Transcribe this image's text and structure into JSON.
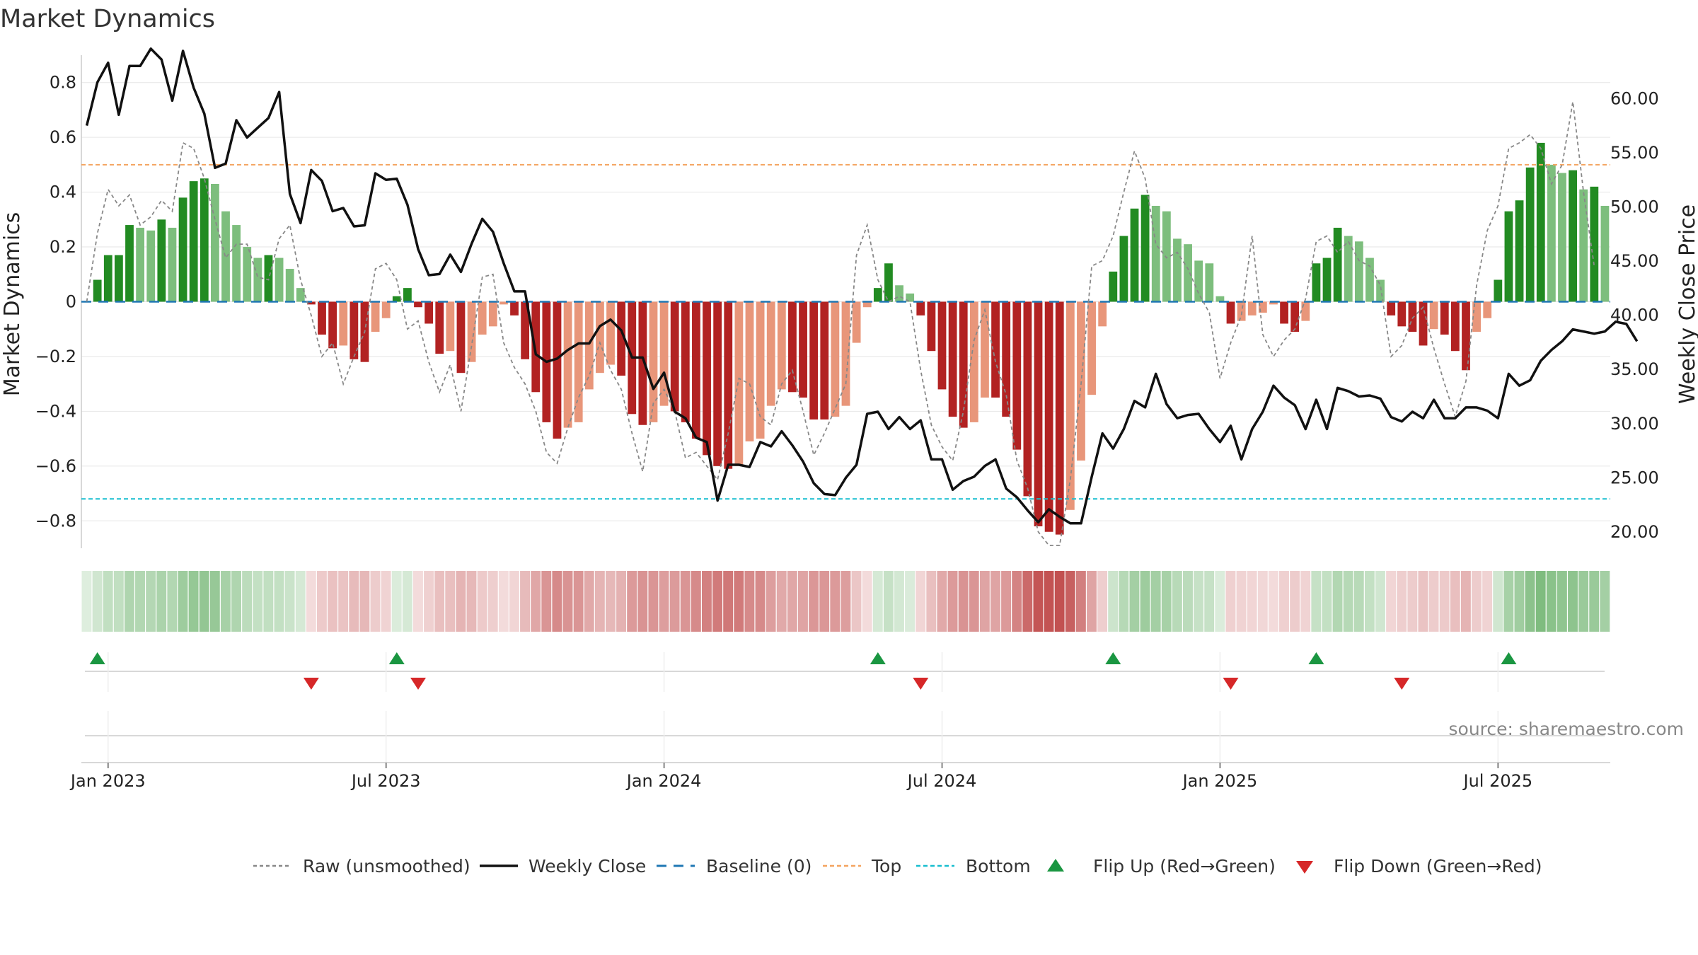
{
  "chart_data": {
    "type": "bar",
    "title": "Market Dynamics",
    "ylabel": "Market Dynamics",
    "y2label": "Weekly Close Price",
    "ylim": [
      -0.9,
      0.9
    ],
    "y2lim": [
      18.5,
      64.0
    ],
    "yticks": [
      "0.8",
      "0.6",
      "0.4",
      "0.2",
      "0",
      "−0.2",
      "−0.4",
      "−0.6",
      "−0.8"
    ],
    "yticks_values": [
      0.8,
      0.6,
      0.4,
      0.2,
      0,
      -0.2,
      -0.4,
      -0.6,
      -0.8
    ],
    "y2ticks": [
      "60.00",
      "55.00",
      "50.00",
      "45.00",
      "40.00",
      "35.00",
      "30.00",
      "25.00",
      "20.00"
    ],
    "y2ticks_values": [
      60,
      55,
      50,
      45,
      40,
      35,
      30,
      25,
      20
    ],
    "xticks": [
      "Jan 2023",
      "Jul 2023",
      "Jan 2024",
      "Jul 2024",
      "Jan 2025",
      "Jul 2025"
    ],
    "xticks_weeks": [
      2,
      28,
      54,
      80,
      106,
      132
    ],
    "top_level": 0.5,
    "bottom_level": -0.72,
    "baseline": 0,
    "grid": true,
    "legend_position": "bottom-center",
    "colors": {
      "green_dark": "#228b22",
      "green_light": "#7dbe7d",
      "red_dark": "#b22222",
      "red_light": "#e8967a",
      "close_line": "#111111",
      "raw_line": "#888888",
      "baseline": "#1f77b4",
      "top": "#f4a460",
      "bottom": "#17becf",
      "flip_up": "#1a9641",
      "flip_down": "#d62728"
    },
    "dynamics": [
      0.0,
      0.08,
      0.17,
      0.17,
      0.28,
      0.27,
      0.26,
      0.3,
      0.27,
      0.38,
      0.44,
      0.45,
      0.43,
      0.33,
      0.28,
      0.2,
      0.16,
      0.17,
      0.16,
      0.12,
      0.05,
      -0.01,
      -0.12,
      -0.17,
      -0.16,
      -0.21,
      -0.22,
      -0.11,
      -0.06,
      0.02,
      0.05,
      -0.02,
      -0.08,
      -0.19,
      -0.18,
      -0.26,
      -0.22,
      -0.12,
      -0.09,
      -0.01,
      -0.05,
      -0.21,
      -0.33,
      -0.44,
      -0.5,
      -0.46,
      -0.44,
      -0.32,
      -0.26,
      -0.23,
      -0.27,
      -0.41,
      -0.45,
      -0.44,
      -0.38,
      -0.4,
      -0.44,
      -0.5,
      -0.56,
      -0.6,
      -0.61,
      -0.6,
      -0.51,
      -0.5,
      -0.38,
      -0.32,
      -0.33,
      -0.35,
      -0.43,
      -0.43,
      -0.42,
      -0.38,
      -0.15,
      -0.02,
      0.05,
      0.14,
      0.06,
      0.03,
      -0.05,
      -0.18,
      -0.32,
      -0.42,
      -0.46,
      -0.44,
      -0.35,
      -0.35,
      -0.42,
      -0.54,
      -0.71,
      -0.82,
      -0.84,
      -0.85,
      -0.76,
      -0.58,
      -0.34,
      -0.09,
      0.11,
      0.24,
      0.34,
      0.39,
      0.35,
      0.33,
      0.23,
      0.21,
      0.15,
      0.14,
      0.02,
      -0.08,
      -0.07,
      -0.05,
      -0.04,
      -0.01,
      -0.08,
      -0.11,
      -0.07,
      0.14,
      0.16,
      0.27,
      0.24,
      0.22,
      0.16,
      0.08,
      -0.05,
      -0.09,
      -0.11,
      -0.16,
      -0.1,
      -0.12,
      -0.18,
      -0.25,
      -0.11,
      -0.06,
      0.08,
      0.33,
      0.37,
      0.49,
      0.58,
      0.5,
      0.47,
      0.48,
      0.41,
      0.42,
      0.35
    ],
    "raw": [
      0.0,
      0.25,
      0.41,
      0.35,
      0.39,
      0.28,
      0.31,
      0.37,
      0.33,
      0.58,
      0.56,
      0.45,
      0.3,
      0.16,
      0.21,
      0.21,
      0.09,
      0.08,
      0.23,
      0.28,
      0.08,
      -0.05,
      -0.2,
      -0.15,
      -0.3,
      -0.2,
      -0.11,
      0.12,
      0.14,
      0.08,
      -0.1,
      -0.07,
      -0.22,
      -0.33,
      -0.23,
      -0.4,
      -0.16,
      0.09,
      0.1,
      -0.15,
      -0.24,
      -0.3,
      -0.4,
      -0.55,
      -0.59,
      -0.46,
      -0.35,
      -0.27,
      -0.15,
      -0.25,
      -0.32,
      -0.48,
      -0.62,
      -0.37,
      -0.32,
      -0.4,
      -0.57,
      -0.55,
      -0.6,
      -0.65,
      -0.48,
      -0.28,
      -0.3,
      -0.42,
      -0.45,
      -0.3,
      -0.25,
      -0.4,
      -0.56,
      -0.48,
      -0.39,
      -0.3,
      0.17,
      0.28,
      0.08,
      0.0,
      0.02,
      0.0,
      -0.25,
      -0.45,
      -0.53,
      -0.58,
      -0.4,
      -0.14,
      -0.03,
      -0.22,
      -0.34,
      -0.58,
      -0.68,
      -0.84,
      -0.89,
      -0.89,
      -0.65,
      -0.3,
      0.13,
      0.15,
      0.24,
      0.4,
      0.55,
      0.45,
      0.21,
      0.16,
      0.18,
      0.12,
      0.03,
      -0.04,
      -0.28,
      -0.15,
      -0.05,
      0.24,
      -0.12,
      -0.2,
      -0.14,
      -0.1,
      0.01,
      0.22,
      0.24,
      0.18,
      0.22,
      0.15,
      0.13,
      0.06,
      -0.2,
      -0.16,
      -0.06,
      -0.02,
      -0.17,
      -0.3,
      -0.42,
      -0.29,
      0.06,
      0.26,
      0.35,
      0.56,
      0.58,
      0.61,
      0.56,
      0.43,
      0.5,
      0.73,
      0.4,
      0.13
    ],
    "close": [
      57.5,
      61.5,
      63.3,
      58.5,
      63.0,
      63.0,
      64.6,
      63.6,
      59.8,
      64.4,
      61.0,
      58.6,
      53.6,
      54.0,
      58.0,
      56.4,
      57.3,
      58.2,
      60.6,
      51.2,
      48.5,
      53.4,
      52.4,
      49.6,
      49.9,
      48.2,
      48.3,
      53.1,
      52.5,
      52.6,
      50.2,
      46.1,
      43.7,
      43.8,
      45.6,
      44.0,
      46.6,
      48.9,
      47.7,
      44.8,
      42.2,
      42.2,
      36.4,
      35.7,
      36.0,
      36.8,
      37.4,
      37.4,
      39.0,
      39.6,
      38.6,
      36.1,
      36.1,
      33.2,
      34.7,
      31.1,
      30.5,
      28.7,
      28.3,
      22.9,
      26.2,
      26.2,
      26.0,
      28.3,
      27.9,
      29.3,
      28.0,
      26.5,
      24.5,
      23.5,
      23.4,
      25.0,
      26.2,
      30.9,
      31.1,
      29.5,
      30.6,
      29.5,
      30.3,
      26.7,
      26.7,
      23.9,
      24.7,
      25.1,
      26.1,
      26.7,
      24.0,
      23.2,
      22.0,
      20.9,
      22.1,
      21.4,
      20.8,
      20.8,
      25.1,
      29.1,
      27.7,
      29.5,
      32.1,
      31.5,
      34.6,
      31.8,
      30.5,
      30.8,
      30.9,
      29.5,
      28.3,
      29.8,
      26.7,
      29.5,
      31.1,
      33.5,
      32.4,
      31.7,
      29.5,
      32.2,
      29.5,
      33.3,
      33.0,
      32.5,
      32.6,
      32.3,
      30.6,
      30.2,
      31.1,
      30.5,
      32.2,
      30.5,
      30.5,
      31.5,
      31.5,
      31.2,
      30.5,
      34.6,
      33.5,
      34.0,
      35.8,
      36.8,
      37.6,
      38.7,
      38.5,
      38.3,
      38.5,
      39.4,
      39.2,
      37.6
    ],
    "flips_up": [
      1,
      29,
      74,
      96,
      115,
      133
    ],
    "flips_down": [
      21,
      31,
      78,
      107,
      123
    ]
  },
  "legend": {
    "raw": "Raw (unsmoothed)",
    "close": "Weekly Close",
    "baseline": "Baseline (0)",
    "top": "Top",
    "bottom": "Bottom",
    "flip_up": "Flip Up (Red→Green)",
    "flip_down": "Flip Down (Green→Red)"
  },
  "source": "source: sharemaestro.com"
}
